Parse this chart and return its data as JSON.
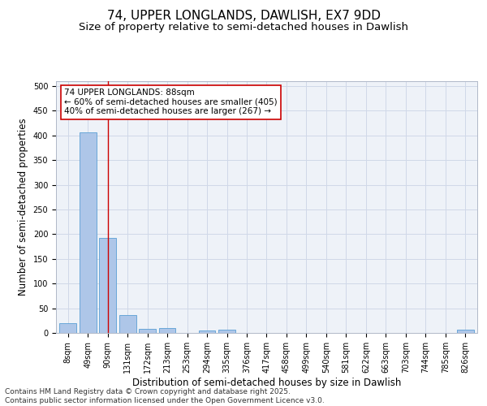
{
  "title_line1": "74, UPPER LONGLANDS, DAWLISH, EX7 9DD",
  "title_line2": "Size of property relative to semi-detached houses in Dawlish",
  "xlabel": "Distribution of semi-detached houses by size in Dawlish",
  "ylabel": "Number of semi-detached properties",
  "categories": [
    "8sqm",
    "49sqm",
    "90sqm",
    "131sqm",
    "172sqm",
    "213sqm",
    "253sqm",
    "294sqm",
    "335sqm",
    "376sqm",
    "417sqm",
    "458sqm",
    "499sqm",
    "540sqm",
    "581sqm",
    "622sqm",
    "663sqm",
    "703sqm",
    "744sqm",
    "785sqm",
    "826sqm"
  ],
  "values": [
    19,
    407,
    193,
    37,
    8,
    10,
    0,
    5,
    6,
    0,
    0,
    0,
    0,
    0,
    0,
    0,
    0,
    0,
    0,
    0,
    6
  ],
  "bar_color": "#aec6e8",
  "bar_edge_color": "#5a9fd4",
  "vline_x": 2,
  "vline_color": "#cc0000",
  "annotation_text": "74 UPPER LONGLANDS: 88sqm\n← 60% of semi-detached houses are smaller (405)\n40% of semi-detached houses are larger (267) →",
  "annotation_box_color": "#ffffff",
  "annotation_box_edge": "#cc0000",
  "ylim": [
    0,
    510
  ],
  "yticks": [
    0,
    50,
    100,
    150,
    200,
    250,
    300,
    350,
    400,
    450,
    500
  ],
  "grid_color": "#d0d8e8",
  "background_color": "#eef2f8",
  "footer_text": "Contains HM Land Registry data © Crown copyright and database right 2025.\nContains public sector information licensed under the Open Government Licence v3.0.",
  "title_fontsize": 11,
  "subtitle_fontsize": 9.5,
  "axis_label_fontsize": 8.5,
  "tick_fontsize": 7,
  "annotation_fontsize": 7.5,
  "footer_fontsize": 6.5
}
